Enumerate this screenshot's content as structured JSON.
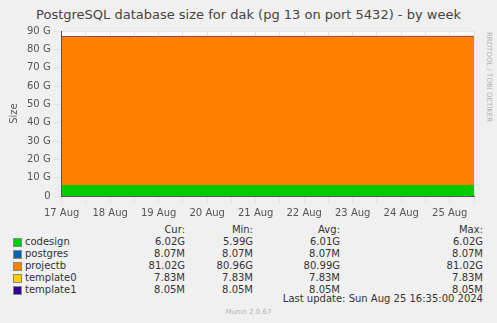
{
  "chart_data": {
    "type": "area",
    "title": "PostgreSQL database size for dak (pg 13 on port 5432) - by week",
    "y_label": "Size",
    "categories": [
      "17 Aug",
      null,
      "18 Aug",
      null,
      "19 Aug",
      null,
      "20 Aug",
      null,
      "21 Aug",
      null,
      "22 Aug",
      null,
      "23 Aug",
      null,
      "24 Aug",
      null,
      "25 Aug",
      null
    ],
    "series": [
      {
        "name": "codesign",
        "color": "#00cc00",
        "values": [
          5.99,
          5.99,
          6.0,
          6.0,
          6.0,
          6.01,
          6.01,
          6.01,
          6.01,
          6.01,
          6.01,
          6.01,
          6.02,
          6.02,
          6.02,
          6.02,
          6.02,
          6.02
        ]
      },
      {
        "name": "postgres",
        "color": "#0066b3",
        "values": [
          0.00807,
          0.00807,
          0.00807,
          0.00807,
          0.00807,
          0.00807,
          0.00807,
          0.00807,
          0.00807,
          0.00807,
          0.00807,
          0.00807,
          0.00807,
          0.00807,
          0.00807,
          0.00807,
          0.00807,
          0.00807
        ]
      },
      {
        "name": "projectb",
        "color": "#ff8000",
        "values": [
          80.96,
          80.96,
          80.97,
          80.97,
          80.98,
          80.98,
          80.99,
          80.99,
          81.0,
          81.0,
          81.0,
          81.01,
          81.01,
          81.01,
          81.02,
          81.02,
          81.02,
          81.02
        ]
      },
      {
        "name": "template0",
        "color": "#ffcc00",
        "values": [
          0.00783,
          0.00783,
          0.00783,
          0.00783,
          0.00783,
          0.00783,
          0.00783,
          0.00783,
          0.00783,
          0.00783,
          0.00783,
          0.00783,
          0.00783,
          0.00783,
          0.00783,
          0.00783,
          0.00783,
          0.00783
        ]
      },
      {
        "name": "template1",
        "color": "#330099",
        "values": [
          0.00805,
          0.00805,
          0.00805,
          0.00805,
          0.00805,
          0.00805,
          0.00805,
          0.00805,
          0.00805,
          0.00805,
          0.00805,
          0.00805,
          0.00805,
          0.00805,
          0.00805,
          0.00805,
          0.00805,
          0.00805
        ]
      }
    ],
    "ylim": [
      0,
      90
    ],
    "yticks": [
      0,
      {
        "value": 10,
        "label": "10 G"
      },
      {
        "value": 20,
        "label": "20 G"
      },
      {
        "value": 30,
        "label": "30 G"
      },
      {
        "value": 40,
        "label": "40 G"
      },
      {
        "value": 50,
        "label": "50 G"
      },
      {
        "value": 60,
        "label": "60 G"
      },
      {
        "value": 70,
        "label": "70 G"
      },
      {
        "value": 80,
        "label": "80 G"
      },
      {
        "value": 90,
        "label": "90 G"
      }
    ],
    "stacked": true,
    "grid": true,
    "legend": "bottom",
    "legend_table": {
      "columns": [
        "Cur:",
        "Min:",
        "Avg:",
        "Max:"
      ],
      "rows": [
        [
          "6.02G",
          "5.99G",
          "6.01G",
          "6.02G"
        ],
        [
          "8.07M",
          "8.07M",
          "8.07M",
          "8.07M"
        ],
        [
          "81.02G",
          "80.96G",
          "80.99G",
          "81.02G"
        ],
        [
          "7.83M",
          "7.83M",
          "7.83M",
          "7.83M"
        ],
        [
          "8.05M",
          "8.05M",
          "8.05M",
          "8.05M"
        ]
      ]
    },
    "footer": "Last update: Sun Aug 25 16:35:00 2024",
    "credit": "Munin 2.0.67",
    "side_text": "RRDTOOL / TOBI OETIKER"
  }
}
